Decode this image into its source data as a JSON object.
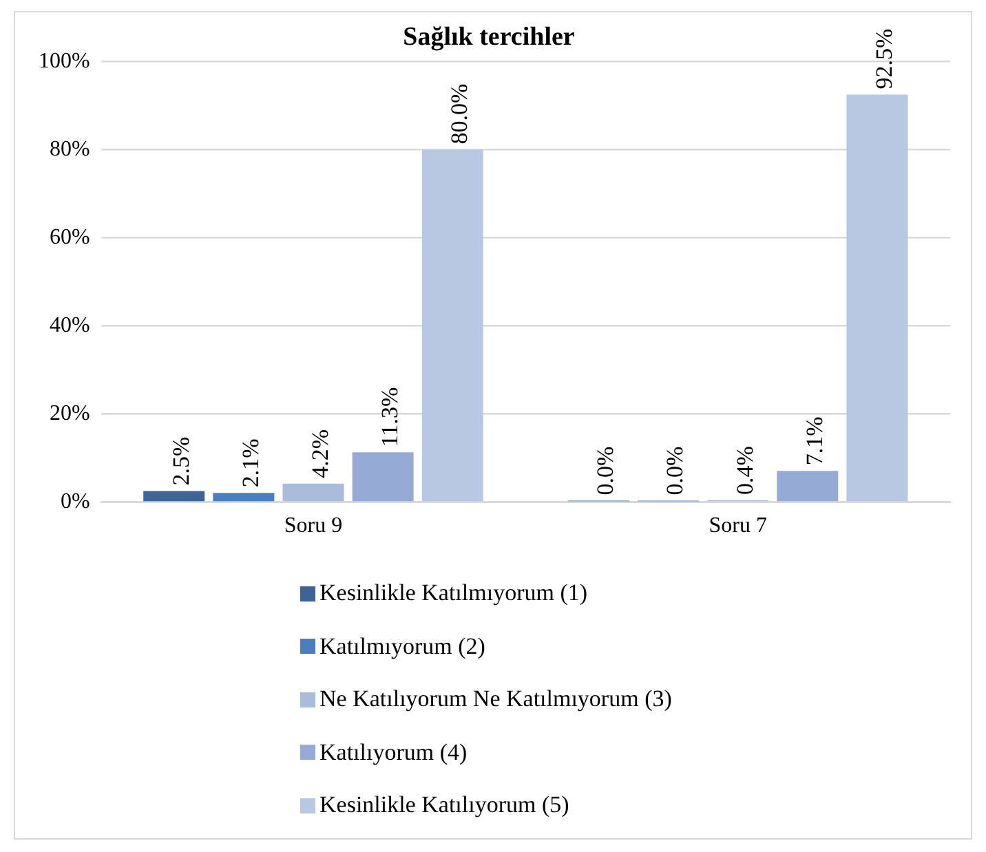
{
  "chart_data": {
    "type": "bar",
    "title": "Sağlık tercihler",
    "categories": [
      "Soru 9",
      "Soru 7"
    ],
    "series": [
      {
        "name": "Kesinlikle Katılmıyorum (1)",
        "color": "#3e6496",
        "values": [
          2.5,
          0.0
        ],
        "value_labels": [
          "2.5%",
          "0.0%"
        ]
      },
      {
        "name": "Katılmıyorum (2)",
        "color": "#4a7ebf",
        "values": [
          2.1,
          0.0
        ],
        "value_labels": [
          "2.1%",
          "0.0%"
        ]
      },
      {
        "name": "Ne Katılıyorum Ne Katılmıyorum (3)",
        "color": "#aabcdc",
        "values": [
          4.2,
          0.4
        ],
        "value_labels": [
          "4.2%",
          "0.4%"
        ]
      },
      {
        "name": "Katılıyorum (4)",
        "color": "#95aad4",
        "values": [
          11.3,
          7.1
        ],
        "value_labels": [
          "11.3%",
          "7.1%"
        ]
      },
      {
        "name": "Kesinlikle Katılıyorum (5)",
        "color": "#b9c8e2",
        "values": [
          80.0,
          92.5
        ],
        "value_labels": [
          "80.0%",
          "92.5%"
        ]
      }
    ],
    "ylim": [
      0,
      100
    ],
    "yticks": [
      {
        "value": 0,
        "label": "0%"
      },
      {
        "value": 20,
        "label": "20%"
      },
      {
        "value": 40,
        "label": "40%"
      },
      {
        "value": 60,
        "label": "60%"
      },
      {
        "value": 80,
        "label": "80%"
      },
      {
        "value": 100,
        "label": "100%"
      }
    ],
    "grid": "y",
    "legend": "bottom"
  }
}
